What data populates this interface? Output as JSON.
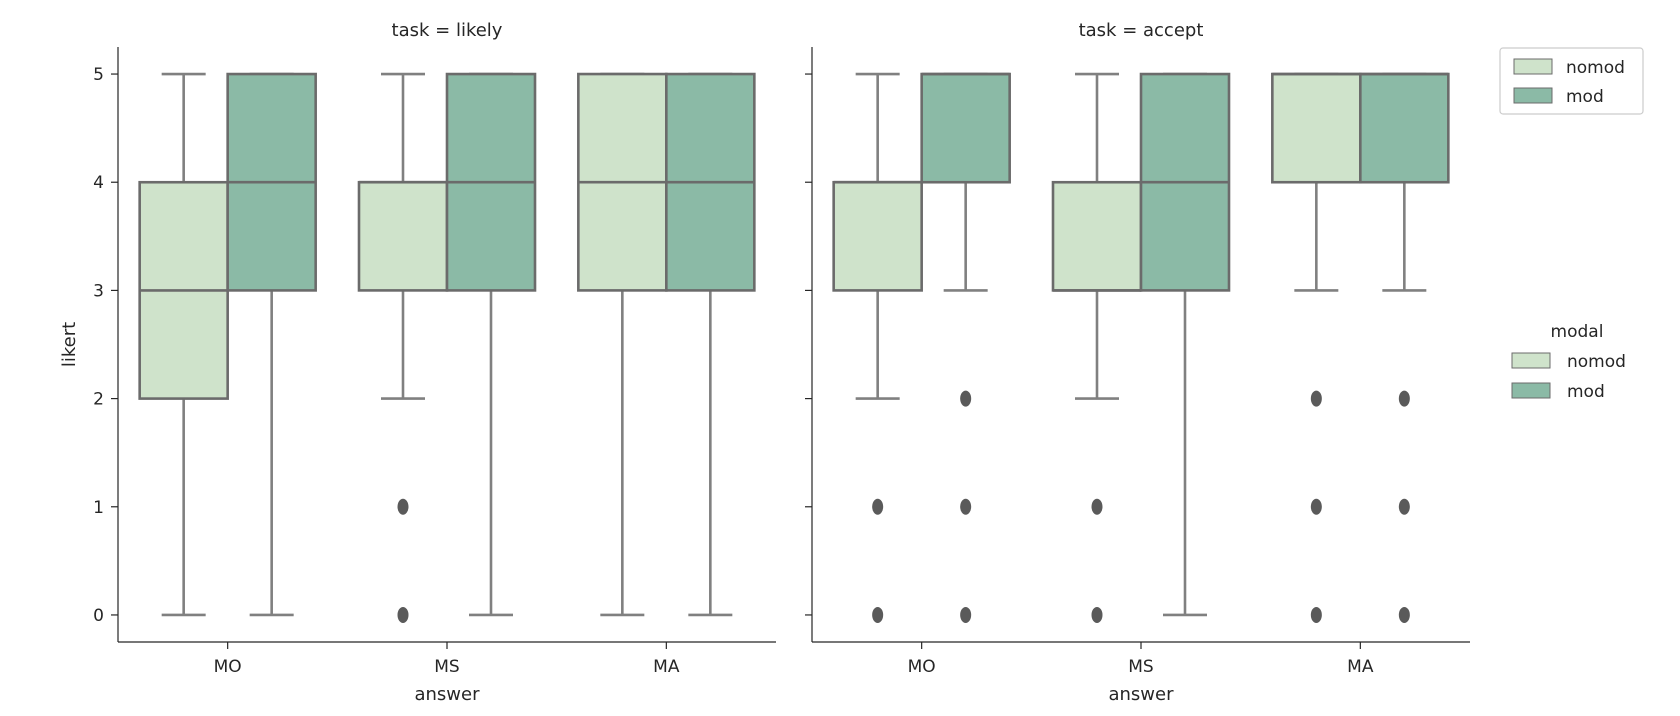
{
  "chart_data": {
    "type": "box",
    "categories": [
      "MO",
      "MS",
      "MA"
    ],
    "xlabel": "answer",
    "ylabel": "likert",
    "ylim": [
      -0.25,
      5.25
    ],
    "yticks": [
      0,
      1,
      2,
      3,
      4,
      5
    ],
    "grid": false,
    "legend_placement": "top-right",
    "hue_legend_title": "modal",
    "series_names": [
      "nomod",
      "mod"
    ],
    "colors": {
      "nomod": "#cfe3cb",
      "mod": "#8bbaa6",
      "edge": "#6b6b6b",
      "whisker": "#808080",
      "flier": "#5a5a5a"
    },
    "panels": [
      {
        "title": "task = likely",
        "boxes": [
          {
            "category": "MO",
            "series": "nomod",
            "whislo": 0,
            "q1": 2,
            "med": 3,
            "q3": 4,
            "whishi": 5,
            "fliers": []
          },
          {
            "category": "MO",
            "series": "mod",
            "whislo": 0,
            "q1": 3,
            "med": 4,
            "q3": 5,
            "whishi": 5,
            "fliers": []
          },
          {
            "category": "MS",
            "series": "nomod",
            "whislo": 2,
            "q1": 3,
            "med": 4,
            "q3": 4,
            "whishi": 5,
            "fliers": [
              1,
              0
            ]
          },
          {
            "category": "MS",
            "series": "mod",
            "whislo": 0,
            "q1": 3,
            "med": 4,
            "q3": 5,
            "whishi": 5,
            "fliers": []
          },
          {
            "category": "MA",
            "series": "nomod",
            "whislo": 0,
            "q1": 3,
            "med": 4,
            "q3": 5,
            "whishi": 5,
            "fliers": []
          },
          {
            "category": "MA",
            "series": "mod",
            "whislo": 0,
            "q1": 3,
            "med": 4,
            "q3": 5,
            "whishi": 5,
            "fliers": []
          }
        ]
      },
      {
        "title": "task = accept",
        "boxes": [
          {
            "category": "MO",
            "series": "nomod",
            "whislo": 2,
            "q1": 3,
            "med": 4,
            "q3": 4,
            "whishi": 5,
            "fliers": [
              1,
              0
            ]
          },
          {
            "category": "MO",
            "series": "mod",
            "whislo": 3,
            "q1": 4,
            "med": 5,
            "q3": 5,
            "whishi": 5,
            "fliers": [
              2,
              1,
              0
            ]
          },
          {
            "category": "MS",
            "series": "nomod",
            "whislo": 2,
            "q1": 3,
            "med": 3,
            "q3": 4,
            "whishi": 5,
            "fliers": [
              1,
              0
            ]
          },
          {
            "category": "MS",
            "series": "mod",
            "whislo": 0,
            "q1": 3,
            "med": 4,
            "q3": 5,
            "whishi": 5,
            "fliers": []
          },
          {
            "category": "MA",
            "series": "nomod",
            "whislo": 3,
            "q1": 4,
            "med": 5,
            "q3": 5,
            "whishi": 5,
            "fliers": [
              2,
              1,
              0
            ]
          },
          {
            "category": "MA",
            "series": "mod",
            "whislo": 3,
            "q1": 4,
            "med": 5,
            "q3": 5,
            "whishi": 5,
            "fliers": [
              2,
              1,
              0
            ]
          }
        ]
      }
    ]
  }
}
